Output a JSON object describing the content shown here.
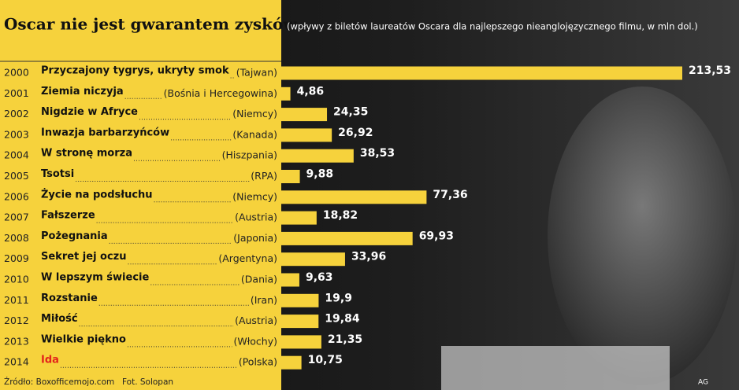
{
  "chart_data": {
    "type": "bar",
    "title": "Oscar nie jest gwarantem zysków",
    "subtitle": "(wpływy z biletów laureatów Oscara dla najlepszego nieanglojęzycznego filmu, w mln dol.)",
    "years": [
      "2000",
      "2001",
      "2002",
      "2003",
      "2004",
      "2005",
      "2006",
      "2007",
      "2008",
      "2009",
      "2010",
      "2011",
      "2012",
      "2013",
      "2014"
    ],
    "categories": [
      "Przyczajony tygrys, ukryty smok",
      "Ziemia niczyja",
      "Nigdzie w Afryce",
      "Inwazja barbarzyńców",
      "W stronę morza",
      "Tsotsi",
      "Życie na podsłuchu",
      "Fałszerze",
      "Pożegnania",
      "Sekret jej oczu",
      "W lepszym świecie",
      "Rozstanie",
      "Miłość",
      "Wielkie piękno",
      "Ida"
    ],
    "countries": [
      "(Tajwan)",
      "(Bośnia i Hercegowina)",
      "(Niemcy)",
      "(Kanada)",
      "(Hiszpania)",
      "(RPA)",
      "(Niemcy)",
      "(Austria)",
      "(Japonia)",
      "(Argentyna)",
      "(Dania)",
      "(Iran)",
      "(Austria)",
      "(Włochy)",
      "(Polska)"
    ],
    "values": [
      213.53,
      4.86,
      24.35,
      26.92,
      38.53,
      9.88,
      77.36,
      18.82,
      69.93,
      33.96,
      9.63,
      19.9,
      19.84,
      21.35,
      10.75
    ],
    "value_labels": [
      "213,53",
      "4,86",
      "24,35",
      "26,92",
      "38,53",
      "9,88",
      "77,36",
      "18,82",
      "69,93",
      "33,96",
      "9,63",
      "19,9",
      "19,84",
      "21,35",
      "10,75"
    ],
    "label_colors": [
      "#111",
      "#111",
      "#111",
      "#111",
      "#111",
      "#111",
      "#111",
      "#111",
      "#111",
      "#111",
      "#111",
      "#111",
      "#111",
      "#111",
      "#e3241b"
    ],
    "color": "#f6d23c",
    "source": "Źródło: Boxofficemojo.com",
    "photo_credit": "Fot. Solopan",
    "signature": "AG"
  }
}
